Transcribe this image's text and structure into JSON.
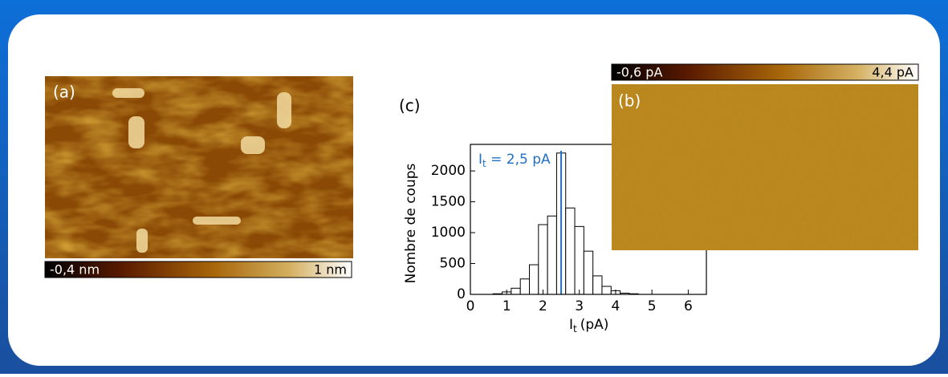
{
  "panels": {
    "a": {
      "label": "(a)",
      "colorbar_min": "-0,4 nm",
      "colorbar_max": "1 nm"
    },
    "b": {
      "label": "(b)",
      "colorbar_min": "-0,6 pA",
      "colorbar_max": "4,4 pA"
    }
  },
  "chart_data": {
    "type": "histogram",
    "panel_label": "(c)",
    "ylabel": "Nombre de coups",
    "xlabel": {
      "symbol": "I",
      "subscript": "t",
      "unit": "(pA)"
    },
    "bins": [
      0.625,
      0.875,
      1.125,
      1.375,
      1.625,
      1.875,
      2.125,
      2.375,
      2.625,
      2.875,
      3.125,
      3.375,
      3.625,
      3.875,
      4.125,
      4.375,
      4.625
    ],
    "values": [
      10,
      40,
      100,
      250,
      480,
      1130,
      1270,
      2290,
      1400,
      1100,
      700,
      300,
      130,
      60,
      20,
      10
    ],
    "color": "#ffffff",
    "edgecolor": "#000000",
    "xlim": [
      0,
      6.5
    ],
    "ylim": [
      0,
      2430
    ],
    "xticks": [
      0,
      1,
      2,
      3,
      4,
      5,
      6
    ],
    "yticks": [
      0,
      500,
      1000,
      1500,
      2000
    ],
    "marker": {
      "x": 2.5,
      "color": "#1f6fc4",
      "symbol": "I",
      "subscript": "t",
      "text": " = 2,5 pA"
    }
  }
}
